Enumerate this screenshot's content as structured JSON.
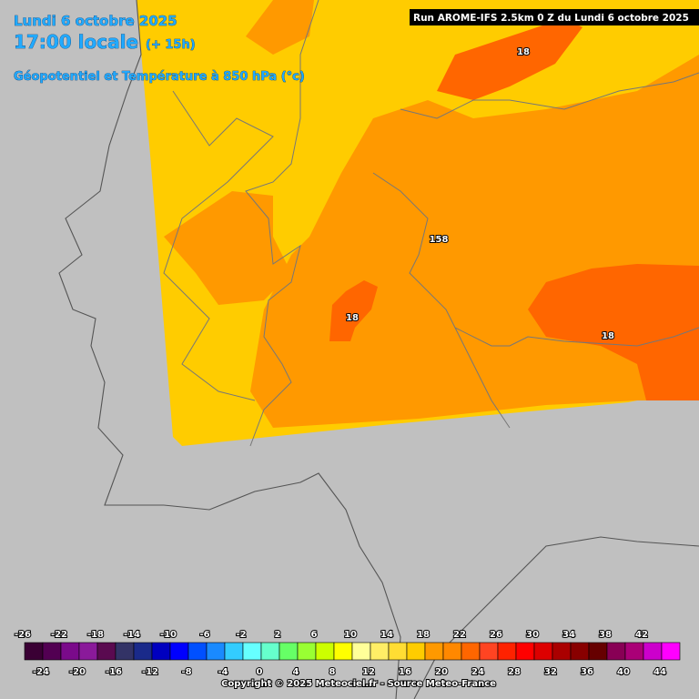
{
  "header": {
    "date": "Lundi 6 octobre 2025",
    "time": "17:00 locale",
    "offset": "(+ 15h)",
    "subtitle": "Géopotentiel et Température à 850 hPa (°c)"
  },
  "run": "Run AROME-IFS 2.5km 0 Z du Lundi 6 octobre 2025",
  "contour_labels": [
    "18",
    "158",
    "18",
    "18"
  ],
  "legend": {
    "top_labels": [
      -26,
      -22,
      -18,
      -14,
      -10,
      -6,
      -2,
      2,
      6,
      10,
      14,
      18,
      22,
      26,
      30,
      34,
      38,
      42
    ],
    "bottom_labels": [
      -24,
      -20,
      -16,
      -12,
      -8,
      -4,
      0,
      4,
      8,
      12,
      16,
      20,
      24,
      28,
      32,
      36,
      40,
      44
    ],
    "colors": [
      "#3a0034",
      "#520052",
      "#7a0a8a",
      "#8a1a9a",
      "#5a0a50",
      "#333366",
      "#1a2a8a",
      "#0000c0",
      "#0000ff",
      "#0050ff",
      "#1a8aff",
      "#33ccff",
      "#66ffff",
      "#66ffcc",
      "#66ff66",
      "#99ff33",
      "#ccff00",
      "#ffff00",
      "#ffff99",
      "#ffee66",
      "#ffdd33",
      "#ffcc00",
      "#ff9900",
      "#ff8800",
      "#ff6600",
      "#ff4422",
      "#ff2200",
      "#ff0000",
      "#dd0000",
      "#aa0000",
      "#880000",
      "#660000",
      "#880055",
      "#aa0077",
      "#cc00cc",
      "#ff00ff"
    ]
  },
  "copyright": "Copyright © 2025 Meteociel.fr - Source Meteo-France"
}
